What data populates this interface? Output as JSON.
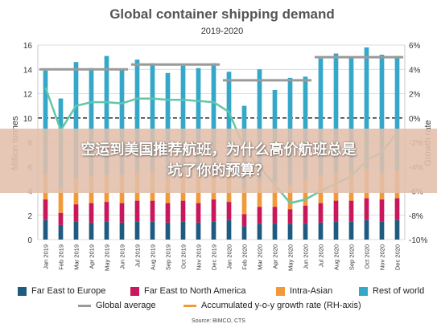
{
  "banner": {
    "line1": "空运到美国推荐航班，为什么高价航班总是",
    "line2": "坑了你的预算？"
  },
  "source": "Source: BIMCO, CTS",
  "legend": {
    "far_east_europe": "Far East to Europe",
    "far_east_na": "Far East to North America",
    "intra_asian": "Intra-Asian",
    "rest_of_world": "Rest of world",
    "global_avg": "Global average",
    "accumulated": "Accumulated y-o-y growth rate (RH-axis)"
  },
  "colors": {
    "far_east_europe": "#1f5a80",
    "far_east_na": "#c8175a",
    "intra_asian": "#f29a3a",
    "rest_of_world": "#35a8c9",
    "global_avg": "#9a9a9a",
    "growth": "#63c7a6"
  },
  "chart_data": {
    "type": "bar",
    "title": "Global container shipping demand",
    "subtitle": "2019-2020",
    "ylabel": "Million tonnes",
    "y2label": "Growth rate",
    "ylim": [
      0,
      16
    ],
    "yticks": [
      "0",
      "2",
      "4",
      "6",
      "8",
      "10",
      "12",
      "14",
      "16"
    ],
    "y2lim": [
      -10,
      6
    ],
    "y2ticks": [
      "-10%",
      "-8%",
      "-6%",
      "-4%",
      "-2%",
      "0%",
      "2%",
      "4%",
      "6%"
    ],
    "categories": [
      "Jan 2019",
      "Feb 2019",
      "Mar 2019",
      "Apr 2019",
      "May 2019",
      "Jun 2019",
      "Jul 2019",
      "Aug 2019",
      "Sep 2019",
      "Oct 2019",
      "Nov 2019",
      "Dec 2019",
      "Jan 2020",
      "Feb 2020",
      "Mar 2020",
      "Apr 2020",
      "May 2020",
      "Jun 2020",
      "Jul 2020",
      "Aug 2020",
      "Sep 2020",
      "Oct 2020",
      "Nov 2020",
      "Dec 2020"
    ],
    "series": [
      {
        "name": "Far East to Europe",
        "values": [
          1.6,
          1.2,
          1.5,
          1.4,
          1.5,
          1.4,
          1.5,
          1.5,
          1.4,
          1.5,
          1.4,
          1.5,
          1.6,
          1.1,
          1.3,
          1.3,
          1.3,
          1.3,
          1.4,
          1.5,
          1.5,
          1.6,
          1.5,
          1.6
        ]
      },
      {
        "name": "Far East to North America",
        "values": [
          1.7,
          1.0,
          1.4,
          1.6,
          1.6,
          1.6,
          1.7,
          1.7,
          1.6,
          1.7,
          1.6,
          1.8,
          1.5,
          1.0,
          1.4,
          1.4,
          1.2,
          1.5,
          1.6,
          1.7,
          1.7,
          1.8,
          1.8,
          1.8
        ]
      },
      {
        "name": "Intra-Asian",
        "values": [
          2.1,
          2.0,
          2.2,
          2.2,
          2.2,
          2.3,
          2.3,
          2.3,
          2.1,
          2.2,
          2.2,
          2.3,
          2.2,
          2.1,
          2.1,
          2.0,
          2.0,
          2.1,
          2.3,
          2.3,
          2.2,
          2.4,
          2.2,
          2.3
        ]
      },
      {
        "name": "Rest of world",
        "values": [
          8.5,
          7.4,
          9.5,
          8.9,
          9.8,
          8.7,
          9.3,
          9.0,
          8.6,
          8.9,
          8.9,
          8.9,
          8.5,
          6.8,
          9.2,
          7.6,
          8.8,
          8.5,
          9.6,
          9.8,
          9.6,
          10.0,
          9.7,
          9.4
        ]
      }
    ],
    "global_average": [
      {
        "period": "2019 H1",
        "value": 14.0
      },
      {
        "period": "2019 H2",
        "value": 14.4
      },
      {
        "period": "2020 H1",
        "value": 13.1
      },
      {
        "period": "2020 H2",
        "value": 15.0
      }
    ],
    "growth_rate": [
      2.5,
      -1.0,
      1.0,
      1.3,
      1.3,
      1.2,
      1.6,
      1.6,
      1.5,
      1.5,
      1.4,
      1.3,
      0.5,
      -2.5,
      -4.0,
      -5.5,
      -7.0,
      -6.7,
      -6.0,
      -5.4,
      -4.8,
      -3.5,
      -2.8,
      -1.2
    ],
    "grid": true
  }
}
